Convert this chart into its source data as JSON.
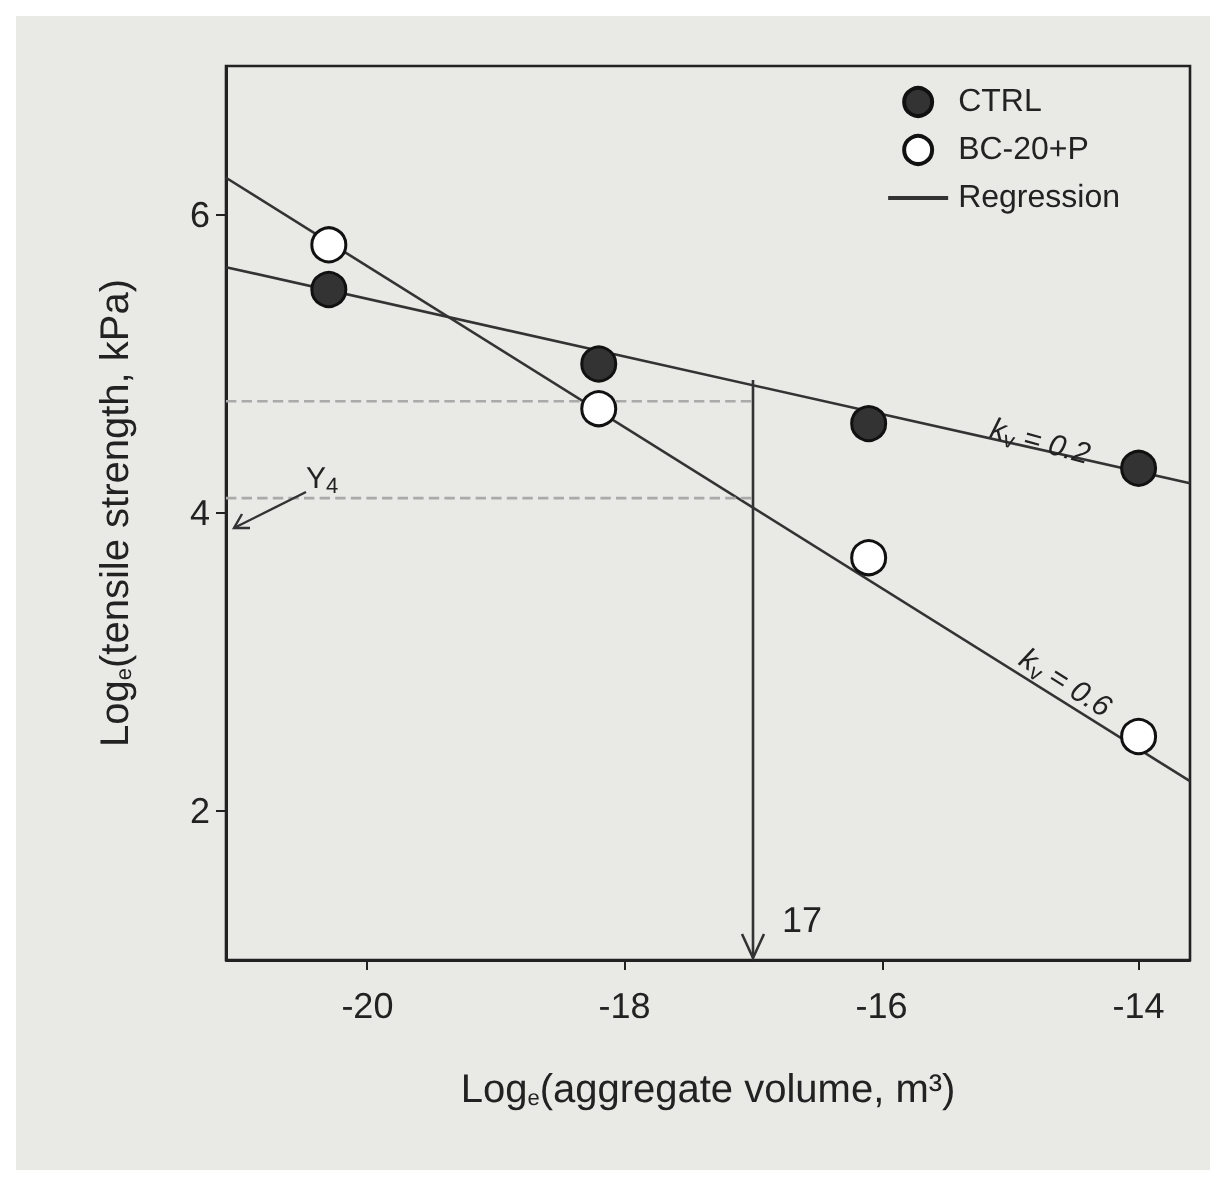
{
  "chart_data": {
    "type": "scatter",
    "xlabel": "Log$_{e}$(aggregate volume, m³)",
    "ylabel": "Log$_{e}$(tensile strength, kPa)",
    "xlim": [
      -21.1,
      -13.6
    ],
    "ylim": [
      1,
      7
    ],
    "xticks": [
      -20,
      -18,
      -16,
      -14
    ],
    "yticks": [
      2,
      4,
      6
    ],
    "x": [
      -20.3,
      -18.2,
      -16.1,
      -14.0
    ],
    "series": [
      {
        "name": "CTRL",
        "color": "#333333",
        "values": [
          5.5,
          5.0,
          4.6,
          4.3
        ]
      },
      {
        "name": "BC-20+P",
        "color": "#ffffff",
        "values": [
          5.8,
          4.7,
          3.7,
          2.5
        ]
      },
      {
        "name": "Regression",
        "type": "line",
        "color": "#333333",
        "marker": "none",
        "x": [
          -21.1,
          -13.6
        ],
        "values": [
          5.65,
          4.2
        ]
      },
      {
        "type": "line",
        "color": "#333333",
        "marker": "none",
        "x": [
          -21.1,
          -13.6
        ],
        "values": [
          6.25,
          2.2
        ]
      },
      {
        "type": "line",
        "color": "#aaaaaa",
        "marker": "none",
        "line_style": "dashed",
        "x": [
          -21.1,
          -17
        ],
        "values": [
          4.75,
          4.75
        ]
      },
      {
        "type": "line",
        "color": "#aaaaaa",
        "marker": "none",
        "line_style": "dashed",
        "x": [
          -21.1,
          -17
        ],
        "values": [
          4.1,
          4.1
        ]
      }
    ],
    "annotations": [
      "k$_{v}$ = 0.2",
      "k$_{v}$ = 0.6",
      "Y$_{4}$",
      "17"
    ],
    "marker": "circle",
    "grid": false,
    "legend": "top right"
  }
}
